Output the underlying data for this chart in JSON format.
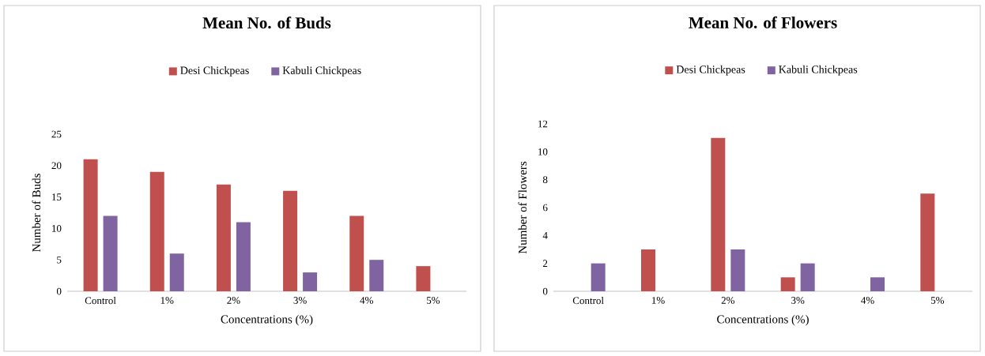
{
  "chart_data": [
    {
      "type": "bar",
      "title": "Mean No. of Buds",
      "xlabel": "Concentrations (%)",
      "ylabel": "Number of Buds",
      "categories": [
        "Control",
        "1%",
        "2%",
        "3%",
        "4%",
        "5%"
      ],
      "legend": "top",
      "ylim": [
        0,
        25
      ],
      "yticks": [
        0,
        5,
        10,
        15,
        20,
        25
      ],
      "series": [
        {
          "name": "Desi Chickpeas",
          "color": "#c0504d",
          "values": [
            21,
            19,
            17,
            16,
            12,
            4
          ]
        },
        {
          "name": "Kabuli  Chickpeas",
          "color": "#8064a2",
          "values": [
            12,
            6,
            11,
            3,
            5,
            0
          ]
        }
      ]
    },
    {
      "type": "bar",
      "title": "Mean No. of Flowers",
      "xlabel": "Concentrations (%)",
      "ylabel": "Number of Flowers",
      "categories": [
        "Control",
        "1%",
        "2%",
        "3%",
        "4%",
        "5%"
      ],
      "legend": "top",
      "ylim": [
        0,
        12
      ],
      "yticks": [
        0,
        2,
        4,
        6,
        8,
        10,
        12
      ],
      "series": [
        {
          "name": "Desi Chickpeas",
          "color": "#c0504d",
          "values": [
            0,
            3,
            11,
            1,
            0,
            7
          ]
        },
        {
          "name": "Kabuli  Chickpeas",
          "color": "#8064a2",
          "values": [
            2,
            0,
            3,
            2,
            1,
            0
          ]
        }
      ]
    }
  ]
}
